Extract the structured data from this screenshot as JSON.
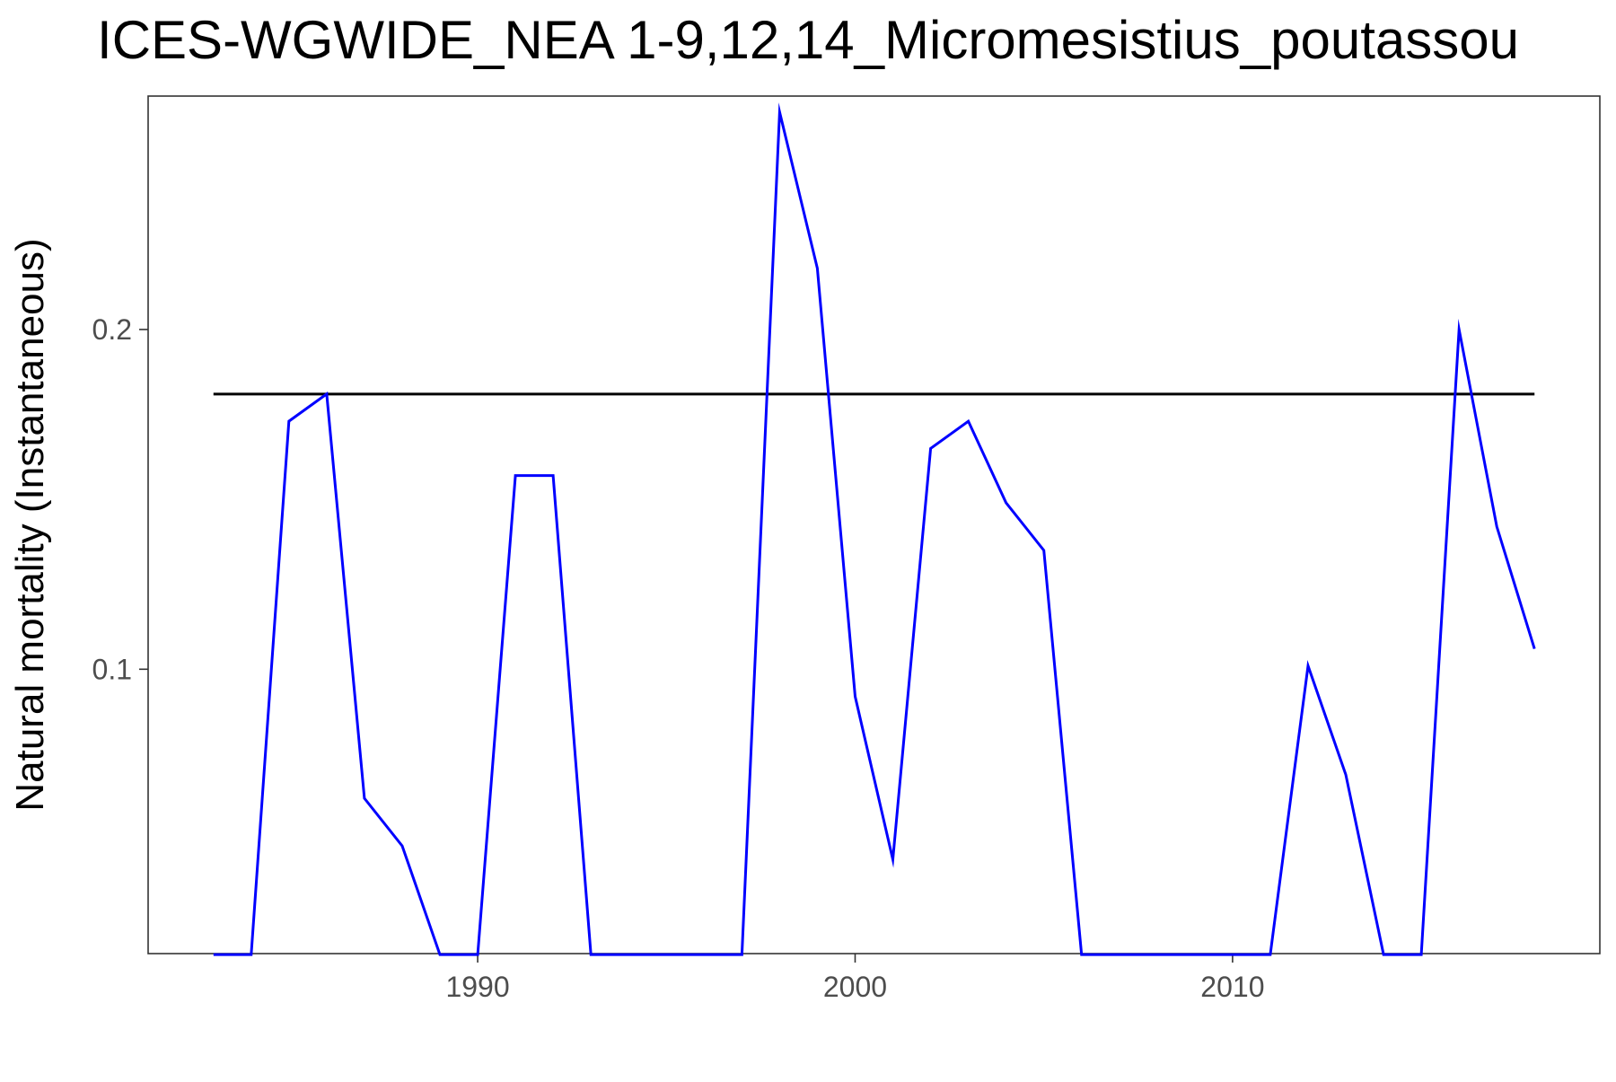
{
  "chart_data": {
    "type": "line",
    "title": "ICES-WGWIDE_NEA 1-9,12,14_Micromesistius_poutassou",
    "xlabel": "",
    "ylabel": "Natural mortality (Instantaneous)",
    "xlim": [
      1983,
      2018
    ],
    "ylim": [
      0.0163,
      0.2687
    ],
    "x_ticks": [
      1990,
      2000,
      2010
    ],
    "y_ticks": [
      0.1,
      0.2
    ],
    "x_tick_labels": [
      "1990",
      "2000",
      "2010"
    ],
    "y_tick_labels": [
      "0.1",
      "0.2"
    ],
    "grid": false,
    "colors": {
      "series": "#0000ff",
      "reference": "#000000",
      "panel_border": "#333333",
      "tick_label": "#4d4d4d"
    },
    "series": [
      {
        "color": "#0000ff",
        "x": [
          1983,
          1984,
          1985,
          1986,
          1987,
          1988,
          1989,
          1990,
          1991,
          1992,
          1993,
          1994,
          1995,
          1996,
          1997,
          1998,
          1999,
          2000,
          2001,
          2002,
          2003,
          2004,
          2005,
          2006,
          2007,
          2008,
          2009,
          2010,
          2011,
          2012,
          2013,
          2014,
          2015,
          2016,
          2017,
          2018
        ],
        "y": [
          0.016,
          0.016,
          0.173,
          0.181,
          0.062,
          0.048,
          0.016,
          0.016,
          0.157,
          0.157,
          0.016,
          0.016,
          0.016,
          0.016,
          0.016,
          0.264,
          0.218,
          0.092,
          0.044,
          0.165,
          0.173,
          0.149,
          0.135,
          0.016,
          0.016,
          0.016,
          0.016,
          0.016,
          0.016,
          0.101,
          0.069,
          0.016,
          0.016,
          0.2,
          0.142,
          0.106
        ]
      }
    ],
    "reference_line": {
      "color": "#000000",
      "x": [
        1983,
        2018
      ],
      "y": 0.181
    }
  }
}
